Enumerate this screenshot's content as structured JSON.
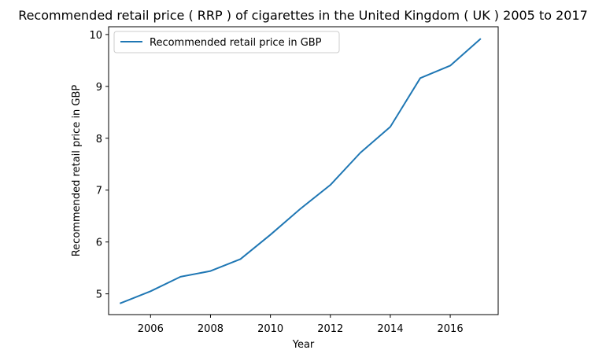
{
  "chart_data": {
    "type": "line",
    "title": "Recommended retail price ( RRP ) of cigarettes in the United Kingdom ( UK ) 2005 to 2017",
    "xlabel": "Year",
    "ylabel": "Recommended retail price in GBP",
    "x": [
      2005,
      2006,
      2007,
      2008,
      2009,
      2010,
      2011,
      2012,
      2013,
      2014,
      2015,
      2016,
      2017
    ],
    "series": [
      {
        "name": "Recommended retail price in GBP",
        "color": "#1f77b4",
        "values": [
          4.82,
          5.05,
          5.33,
          5.44,
          5.67,
          6.14,
          6.64,
          7.1,
          7.72,
          8.22,
          9.16,
          9.4,
          9.91
        ]
      }
    ],
    "xlim": [
      2004.6,
      2017.6
    ],
    "ylim": [
      4.6,
      10.15
    ],
    "xticks": [
      2006,
      2008,
      2010,
      2012,
      2014,
      2016
    ],
    "yticks": [
      5,
      6,
      7,
      8,
      9,
      10
    ],
    "legend_position": "top-left",
    "grid": false
  }
}
